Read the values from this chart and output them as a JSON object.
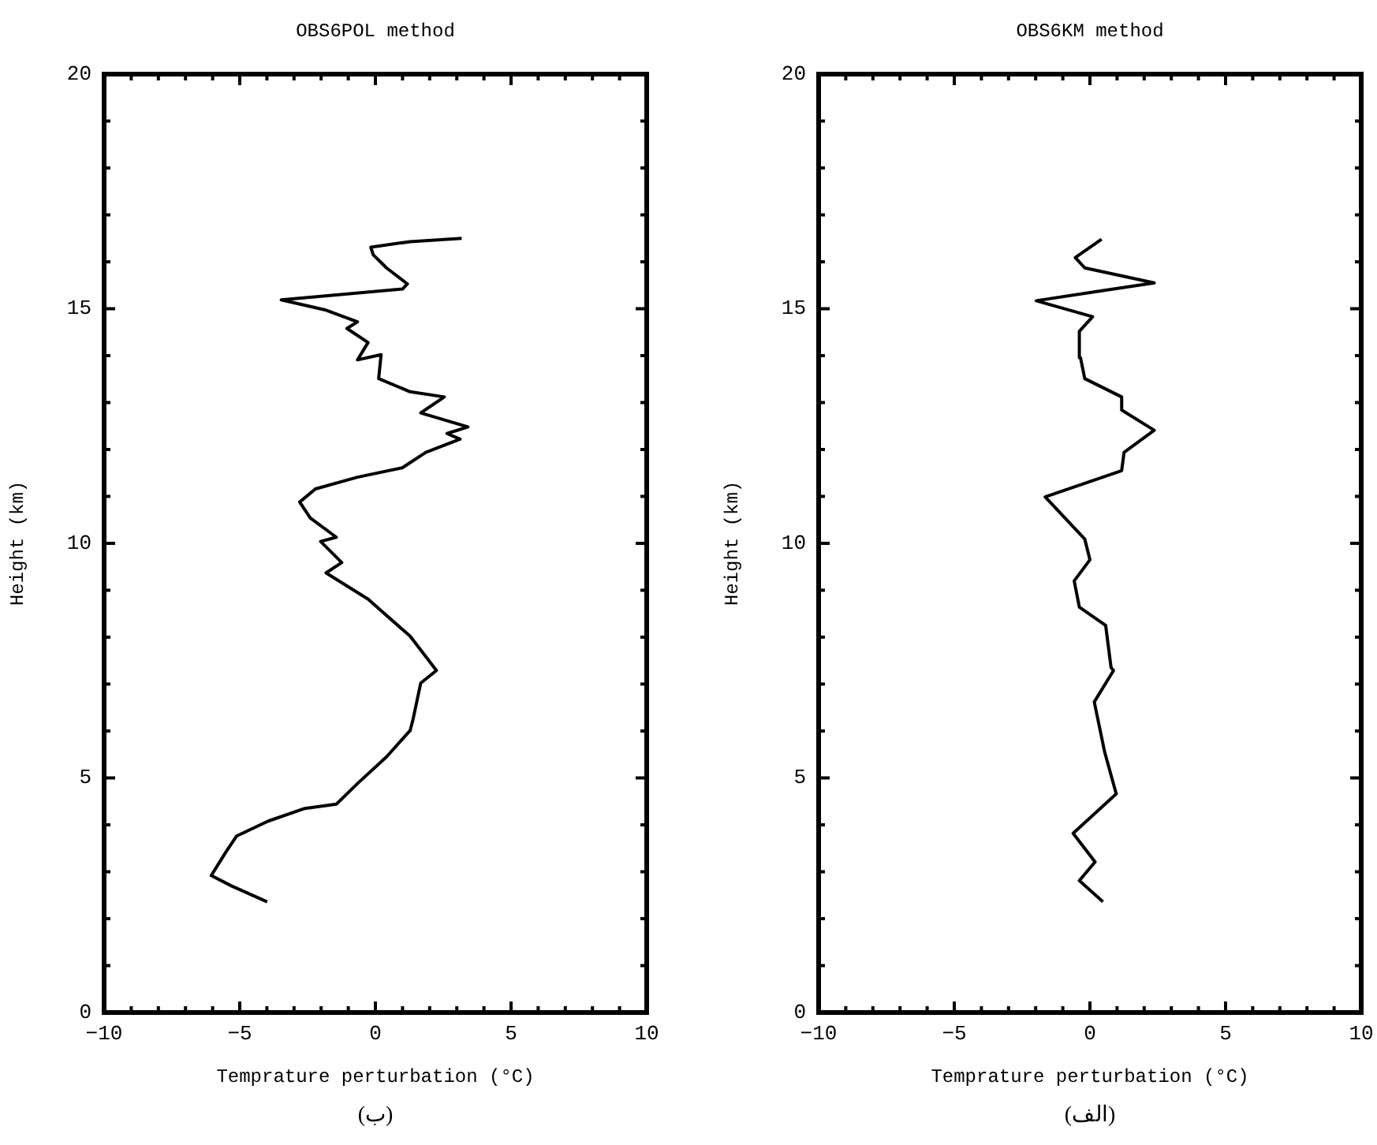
{
  "chart_data": [
    {
      "type": "line",
      "title": "OBS6POL method",
      "xlabel": "Temprature perturbation (°C)",
      "ylabel": "Height (km)",
      "annotations": [
        "(ب)"
      ],
      "xlim": [
        -10,
        10
      ],
      "xticks": [
        -10,
        {
          "value": -9,
          "label": null
        },
        {
          "value": -8,
          "label": null
        },
        {
          "value": -7,
          "label": null
        },
        {
          "value": -6,
          "label": null
        },
        -5,
        {
          "value": -4,
          "label": null
        },
        {
          "value": -3,
          "label": null
        },
        {
          "value": -2,
          "label": null
        },
        {
          "value": -1,
          "label": null
        },
        0,
        {
          "value": 1,
          "label": null
        },
        {
          "value": 2,
          "label": null
        },
        {
          "value": 3,
          "label": null
        },
        {
          "value": 4,
          "label": null
        },
        5,
        {
          "value": 6,
          "label": null
        },
        {
          "value": 7,
          "label": null
        },
        {
          "value": 8,
          "label": null
        },
        {
          "value": 9,
          "label": null
        },
        10
      ],
      "ylim": [
        0,
        20
      ],
      "yticks": [
        0,
        {
          "value": 1,
          "label": null
        },
        {
          "value": 2,
          "label": null
        },
        {
          "value": 3,
          "label": null
        },
        {
          "value": 4,
          "label": null
        },
        5,
        {
          "value": 6,
          "label": null
        },
        {
          "value": 7,
          "label": null
        },
        {
          "value": 8,
          "label": null
        },
        {
          "value": 9,
          "label": null
        },
        10,
        {
          "value": 11,
          "label": null
        },
        {
          "value": 12,
          "label": null
        },
        {
          "value": 13,
          "label": null
        },
        {
          "value": 14,
          "label": null
        },
        15,
        {
          "value": 16,
          "label": null
        },
        {
          "value": 17,
          "label": null
        },
        {
          "value": 18,
          "label": null
        },
        {
          "value": 19,
          "label": null
        },
        20
      ],
      "series": [
        {
          "color": "#000000",
          "x": [
            -3.99,
            -5.31,
            -6.05,
            -5.5,
            -5.12,
            -3.95,
            -2.6,
            -1.44,
            -0.66,
            0.41,
            1.28,
            1.38,
            1.67,
            2.25,
            1.28,
            -0.27,
            -1.82,
            -1.24,
            -2.02,
            -1.44,
            -2.4,
            -2.79,
            -2.21,
            -0.66,
            0.99,
            1.86,
            3.12,
            2.64,
            3.41,
            1.67,
            2.54,
            1.28,
            0.12,
            0.21,
            -0.66,
            -0.27,
            -1.05,
            -0.66,
            -1.82,
            -3.47,
            1.0,
            1.18,
            0.41,
            -0.08,
            -0.17,
            1.28,
            3.18
          ],
          "values": [
            2.36,
            2.7,
            2.92,
            3.43,
            3.76,
            4.08,
            4.35,
            4.44,
            4.88,
            5.45,
            6.01,
            6.23,
            7.02,
            7.29,
            8.02,
            8.81,
            9.37,
            9.59,
            10.04,
            10.13,
            10.54,
            10.88,
            11.16,
            11.41,
            11.61,
            11.94,
            12.22,
            12.34,
            12.48,
            12.78,
            13.12,
            13.23,
            13.51,
            14.02,
            13.91,
            14.28,
            14.58,
            14.72,
            14.97,
            15.19,
            15.42,
            15.53,
            15.87,
            16.15,
            16.31,
            16.43,
            16.5
          ]
        }
      ]
    },
    {
      "type": "line",
      "title": "OBS6KM method",
      "xlabel": "Temprature perturbation (°C)",
      "ylabel": "Height (km)",
      "annotations": [
        "(الف)"
      ],
      "xlim": [
        -10,
        10
      ],
      "xticks": [
        -10,
        {
          "value": -9,
          "label": null
        },
        {
          "value": -8,
          "label": null
        },
        {
          "value": -7,
          "label": null
        },
        {
          "value": -6,
          "label": null
        },
        -5,
        {
          "value": -4,
          "label": null
        },
        {
          "value": -3,
          "label": null
        },
        {
          "value": -2,
          "label": null
        },
        {
          "value": -1,
          "label": null
        },
        0,
        {
          "value": 1,
          "label": null
        },
        {
          "value": 2,
          "label": null
        },
        {
          "value": 3,
          "label": null
        },
        {
          "value": 4,
          "label": null
        },
        5,
        {
          "value": 6,
          "label": null
        },
        {
          "value": 7,
          "label": null
        },
        {
          "value": 8,
          "label": null
        },
        {
          "value": 9,
          "label": null
        },
        10
      ],
      "ylim": [
        0,
        20
      ],
      "yticks": [
        0,
        {
          "value": 1,
          "label": null
        },
        {
          "value": 2,
          "label": null
        },
        {
          "value": 3,
          "label": null
        },
        {
          "value": 4,
          "label": null
        },
        5,
        {
          "value": 6,
          "label": null
        },
        {
          "value": 7,
          "label": null
        },
        {
          "value": 8,
          "label": null
        },
        {
          "value": 9,
          "label": null
        },
        10,
        {
          "value": 11,
          "label": null
        },
        {
          "value": 12,
          "label": null
        },
        {
          "value": 13,
          "label": null
        },
        {
          "value": 14,
          "label": null
        },
        15,
        {
          "value": 16,
          "label": null
        },
        {
          "value": 17,
          "label": null
        },
        {
          "value": 18,
          "label": null
        },
        {
          "value": 19,
          "label": null
        },
        20
      ],
      "series": [
        {
          "color": "#000000",
          "x": [
            0.48,
            -0.39,
            0.19,
            -0.62,
            0.97,
            0.54,
            0.16,
            0.87,
            0.78,
            0.58,
            -0.39,
            -0.58,
            0,
            -0.19,
            -1.65,
            1.17,
            1.26,
            2.37,
            1.17,
            1.17,
            -0.19,
            -0.35,
            -0.39,
            0.1,
            -1.98,
            0.19,
            2.37,
            -0.19,
            -0.54,
            0.43
          ],
          "values": [
            2.36,
            2.81,
            3.21,
            3.82,
            4.66,
            5.56,
            6.62,
            7.29,
            7.35,
            8.25,
            8.64,
            9.2,
            9.65,
            10.09,
            10.99,
            11.55,
            11.94,
            12.41,
            12.84,
            13.12,
            13.51,
            13.96,
            14.52,
            14.83,
            15.17,
            15.36,
            15.55,
            15.87,
            16.09,
            16.48
          ]
        }
      ]
    }
  ]
}
